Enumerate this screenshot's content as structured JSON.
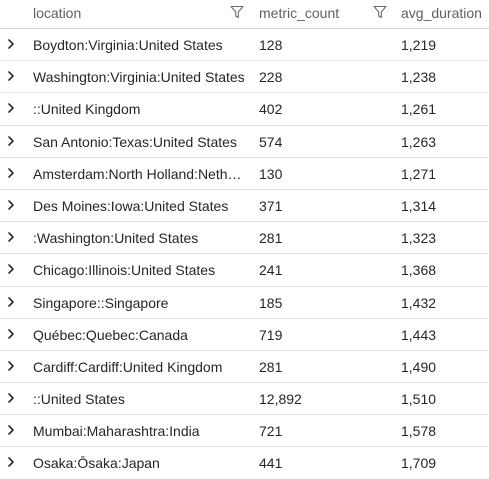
{
  "columns": {
    "location": "location",
    "metric_count": "metric_count",
    "avg_duration": "avg_duration"
  },
  "icons": {
    "filter": "filter-funnel-icon",
    "expand": "chevron-right-icon"
  },
  "rows": [
    {
      "location": "Boydton:Virginia:United States",
      "metric_count": "128",
      "avg_duration": "1,219"
    },
    {
      "location": "Washington:Virginia:United States",
      "metric_count": "228",
      "avg_duration": "1,238"
    },
    {
      "location": "::United Kingdom",
      "metric_count": "402",
      "avg_duration": "1,261"
    },
    {
      "location": "San Antonio:Texas:United States",
      "metric_count": "574",
      "avg_duration": "1,263"
    },
    {
      "location": "Amsterdam:North Holland:Netherlands",
      "metric_count": "130",
      "avg_duration": "1,271"
    },
    {
      "location": "Des Moines:Iowa:United States",
      "metric_count": "371",
      "avg_duration": "1,314"
    },
    {
      "location": ":Washington:United States",
      "metric_count": "281",
      "avg_duration": "1,323"
    },
    {
      "location": "Chicago:Illinois:United States",
      "metric_count": "241",
      "avg_duration": "1,368"
    },
    {
      "location": "Singapore::Singapore",
      "metric_count": "185",
      "avg_duration": "1,432"
    },
    {
      "location": "Québec:Quebec:Canada",
      "metric_count": "719",
      "avg_duration": "1,443"
    },
    {
      "location": "Cardiff:Cardiff:United Kingdom",
      "metric_count": "281",
      "avg_duration": "1,490"
    },
    {
      "location": "::United States",
      "metric_count": "12,892",
      "avg_duration": "1,510"
    },
    {
      "location": "Mumbai:Maharashtra:India",
      "metric_count": "721",
      "avg_duration": "1,578"
    },
    {
      "location": "Osaka:Ōsaka:Japan",
      "metric_count": "441",
      "avg_duration": "1,709"
    }
  ]
}
